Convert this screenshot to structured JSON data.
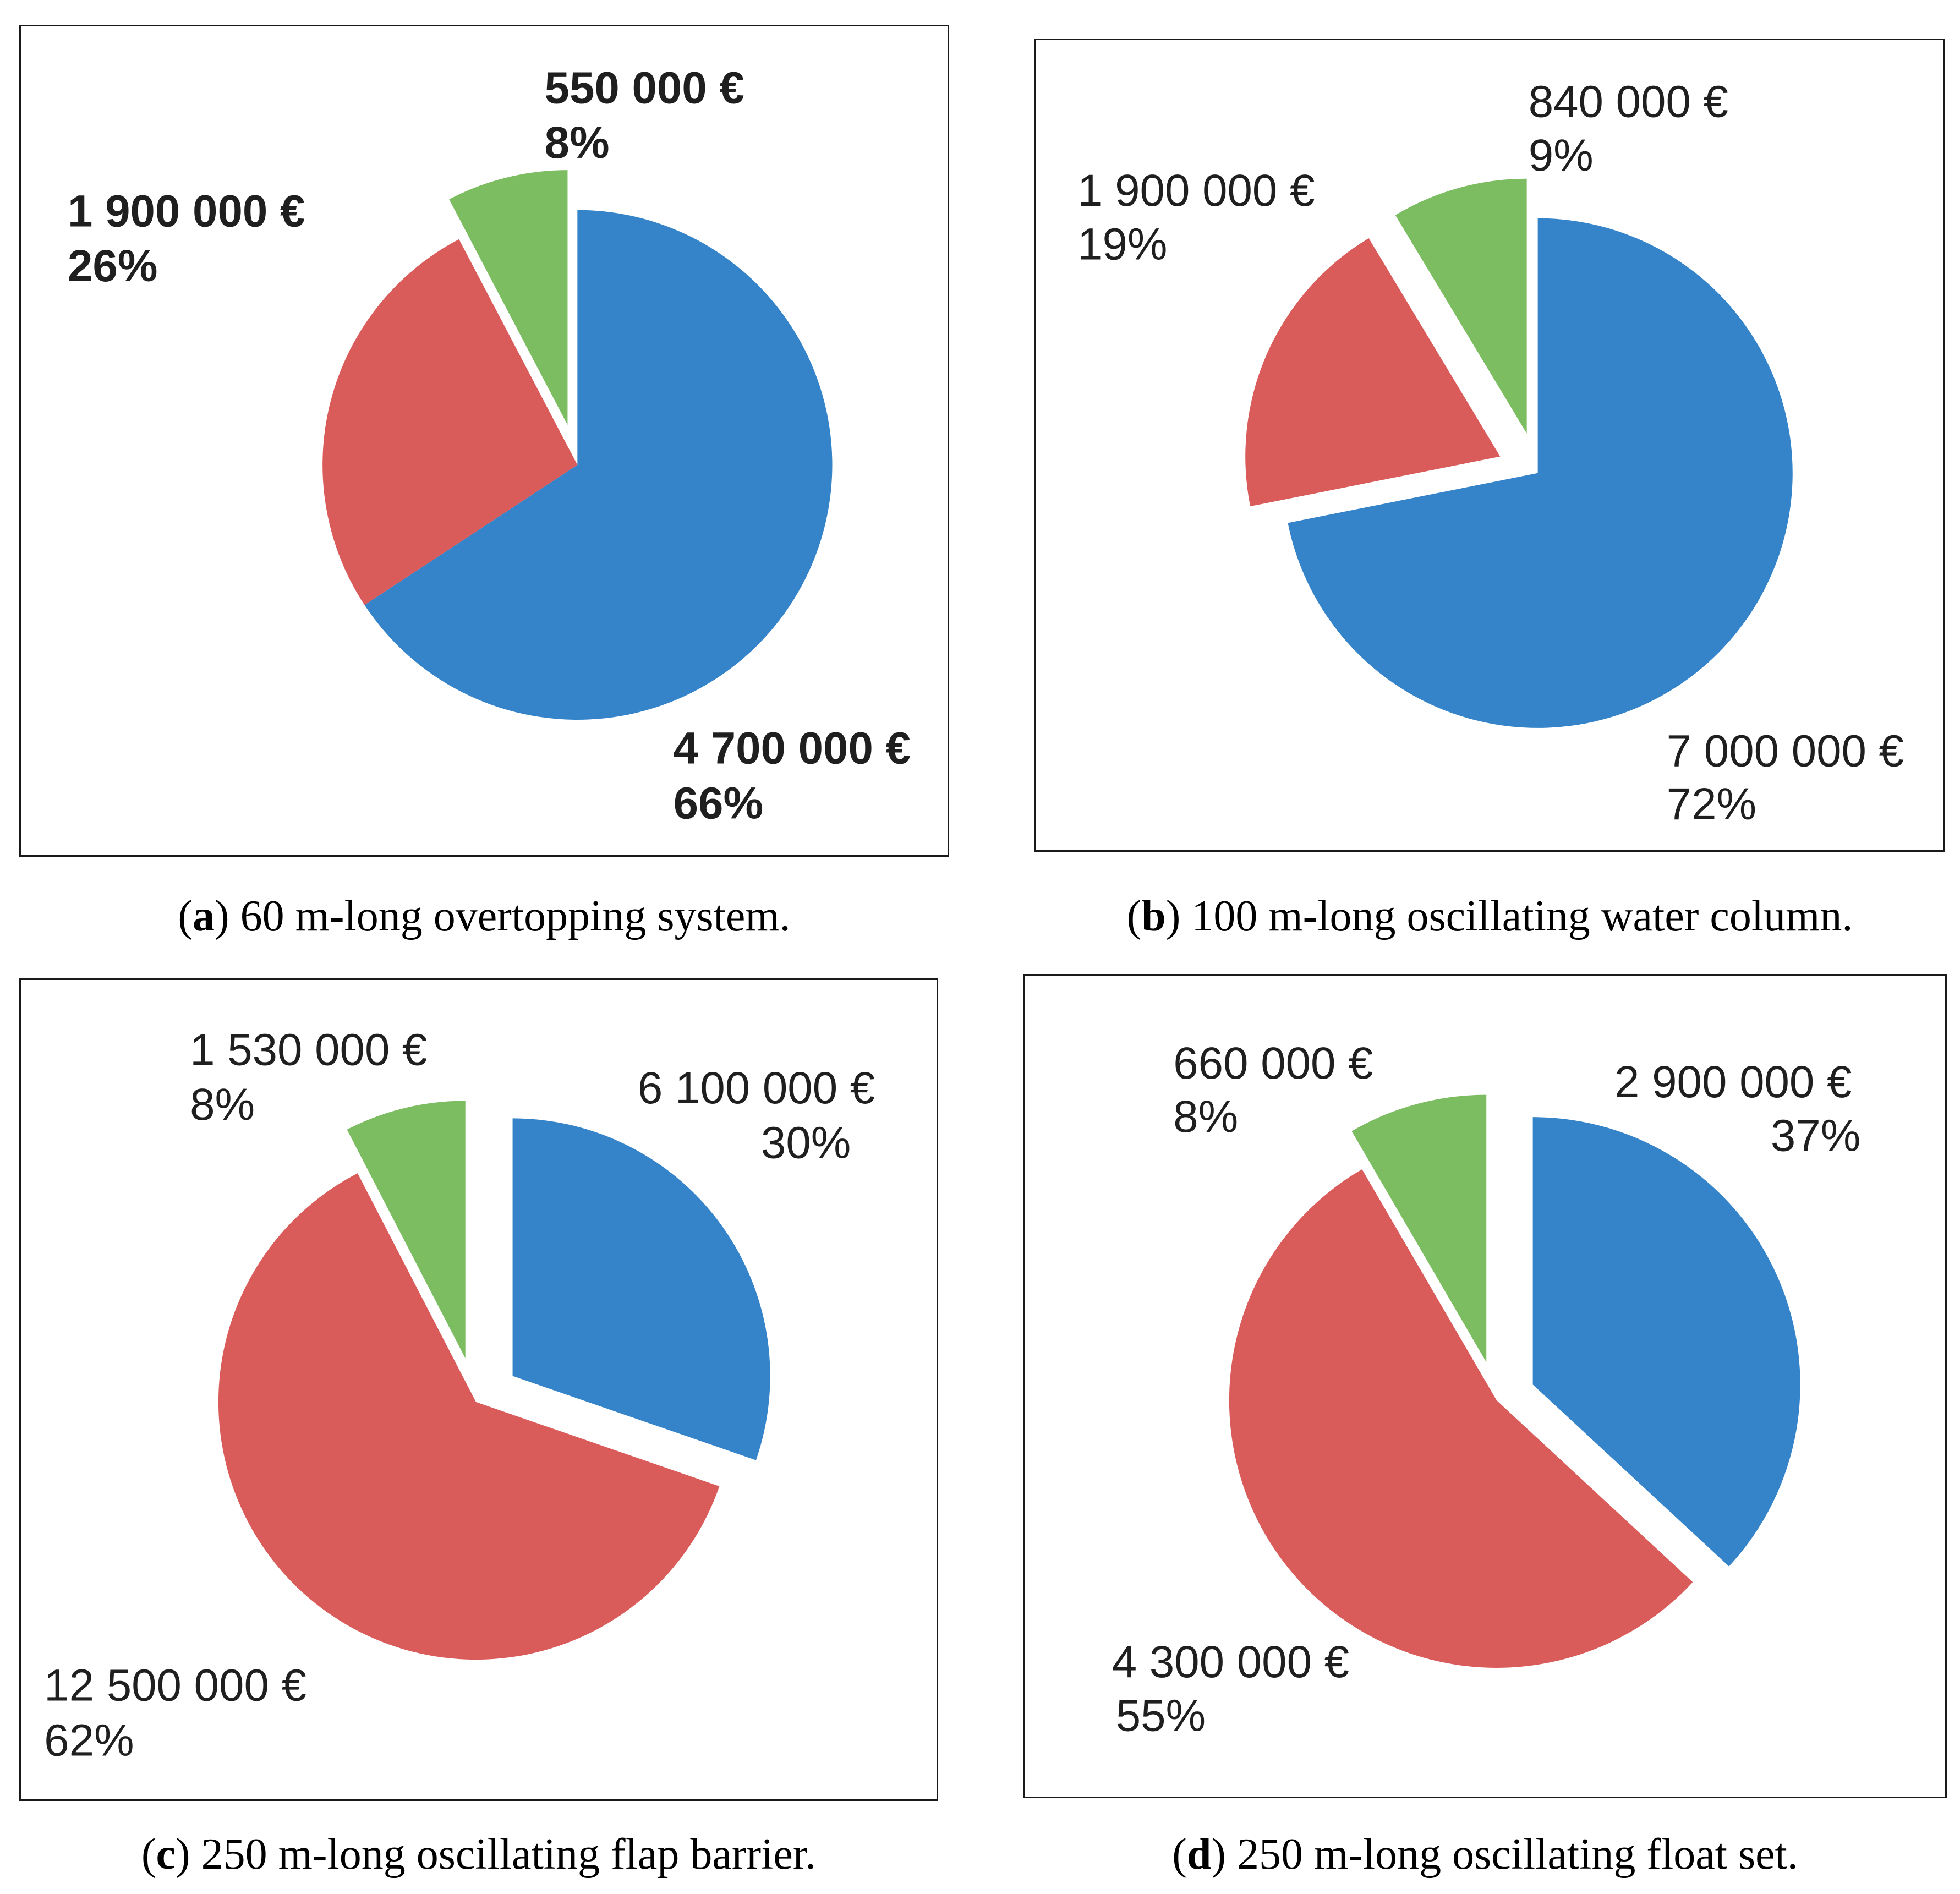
{
  "chart_data": [
    {
      "type": "pie",
      "caption_letter": "a",
      "caption_text": "60 m-long overtopping system.",
      "slices": [
        {
          "label": "4 700 000 €",
          "percent": "66%",
          "value": 4700000,
          "color": "#3584c9"
        },
        {
          "label": "1 900 000 €",
          "percent": "26%",
          "value": 1900000,
          "color": "#d95c5a"
        },
        {
          "label": "550 000 €",
          "percent": "8%",
          "value": 550000,
          "color": "#7cbd62"
        }
      ]
    },
    {
      "type": "pie",
      "caption_letter": "b",
      "caption_text": "100 m-long oscillating water column.",
      "slices": [
        {
          "label": "7 000 000 €",
          "percent": "72%",
          "value": 7000000,
          "color": "#3584c9"
        },
        {
          "label": "1 900 000 €",
          "percent": "19%",
          "value": 1900000,
          "color": "#d95c5a"
        },
        {
          "label": "840 000 €",
          "percent": "9%",
          "value": 840000,
          "color": "#7cbd62"
        }
      ]
    },
    {
      "type": "pie",
      "caption_letter": "c",
      "caption_text": "250 m-long oscillating flap barrier.",
      "slices": [
        {
          "label": "6 100 000 €",
          "percent": "30%",
          "value": 6100000,
          "color": "#3584c9"
        },
        {
          "label": "12 500 000 €",
          "percent": "62%",
          "value": 12500000,
          "color": "#d95c5a"
        },
        {
          "label": "1 530 000 €",
          "percent": "8%",
          "value": 1530000,
          "color": "#7cbd62"
        }
      ]
    },
    {
      "type": "pie",
      "caption_letter": "d",
      "caption_text": "250 m-long oscillating float set.",
      "slices": [
        {
          "label": "2 900 000 €",
          "percent": "37%",
          "value": 2900000,
          "color": "#3584c9"
        },
        {
          "label": "4 300 000 €",
          "percent": "55%",
          "value": 4300000,
          "color": "#d95c5a"
        },
        {
          "label": "660 000 €",
          "percent": "8%",
          "value": 660000,
          "color": "#7cbd62"
        }
      ]
    }
  ]
}
